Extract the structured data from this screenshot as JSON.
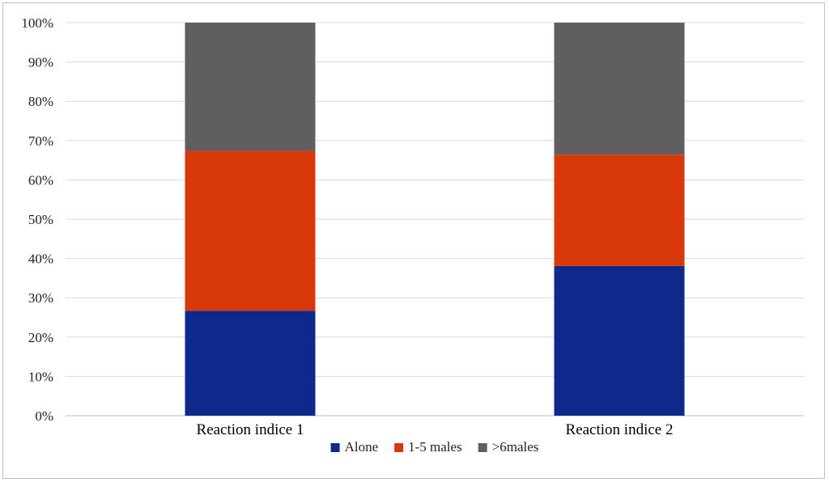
{
  "chart_data": {
    "type": "bar",
    "stacked": true,
    "percent": true,
    "categories": [
      "Reaction indice 1",
      "Reaction indice 2"
    ],
    "series": [
      {
        "name": "Alone",
        "color": "#0f288c",
        "values": [
          26.7,
          38.1
        ]
      },
      {
        "name": "1-5 males",
        "color": "#d9380a",
        "values": [
          40.7,
          28.3
        ]
      },
      {
        "name": ">6males",
        "color": "#5f5f5f",
        "values": [
          32.6,
          33.6
        ]
      }
    ],
    "yticks": [
      "0%",
      "10%",
      "20%",
      "30%",
      "40%",
      "50%",
      "60%",
      "70%",
      "80%",
      "90%",
      "100%"
    ],
    "ylim": [
      0,
      100
    ],
    "grid": true,
    "legend_position": "bottom",
    "title": "",
    "xlabel": "",
    "ylabel": ""
  }
}
